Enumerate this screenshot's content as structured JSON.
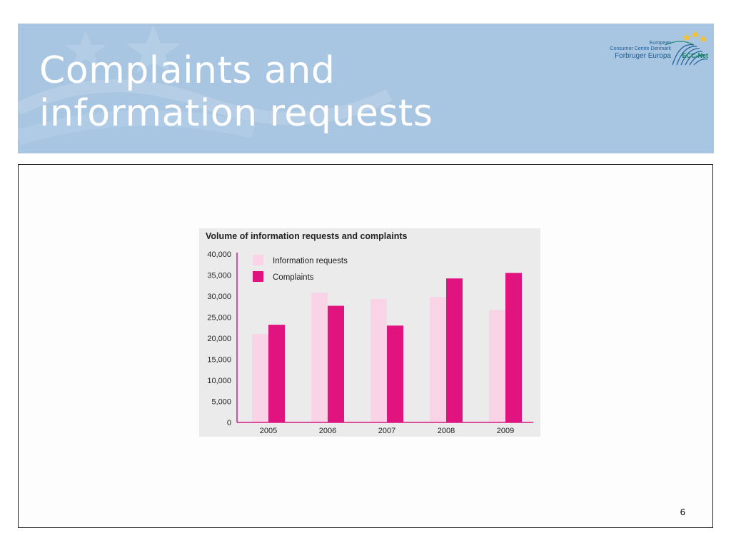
{
  "slide": {
    "title_line1": "Complaints and",
    "title_line2": "information requests",
    "page_number": "6"
  },
  "logo": {
    "line1": "European",
    "line2": "Consumer Centre Denmark",
    "line3": "Forbruger Europa",
    "line4": "ECC-Net"
  },
  "colors": {
    "header_bg": "#a8c6e2",
    "info_requests": "#f9d3e6",
    "complaints": "#e0137f",
    "axis": "#d81b7f"
  },
  "chart_data": {
    "type": "bar",
    "title": "Volume of information requests and complaints",
    "categories": [
      "2005",
      "2006",
      "2007",
      "2008",
      "2009"
    ],
    "series": [
      {
        "name": "Information requests",
        "values": [
          21000,
          30800,
          29300,
          29800,
          26700
        ]
      },
      {
        "name": "Complaints",
        "values": [
          23200,
          27700,
          23000,
          34200,
          35500
        ]
      }
    ],
    "ylim": [
      0,
      40000
    ],
    "yticks": [
      "0",
      "5,000",
      "10,000",
      "15,000",
      "20,000",
      "25,000",
      "30,000",
      "35,000",
      "40,000"
    ],
    "xlabel": "",
    "ylabel": "",
    "legend_position": "top-left",
    "grid": false
  }
}
